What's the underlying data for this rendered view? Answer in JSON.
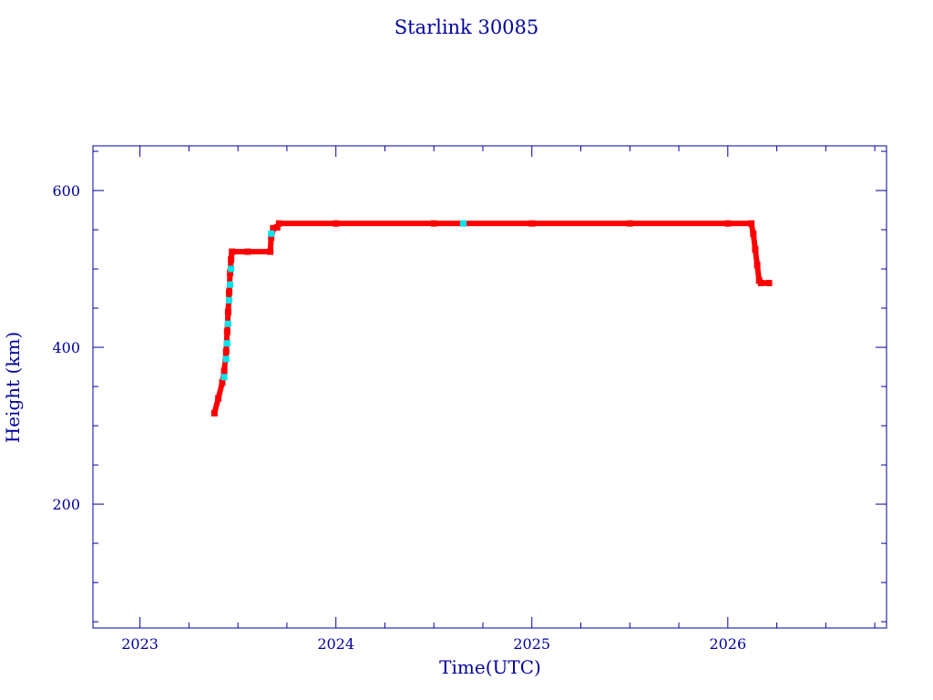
{
  "chart_data": {
    "type": "scatter",
    "title": "Starlink 30085",
    "xlabel": "Time(UTC)",
    "ylabel": "Height (km)",
    "xlim": [
      2022.76,
      2026.81
    ],
    "ylim": [
      42,
      657
    ],
    "xticks": [
      2023,
      2024,
      2025,
      2026
    ],
    "xtick_labels": [
      "2023",
      "2024",
      "2025",
      "2026"
    ],
    "yticks": [
      200,
      400,
      600
    ],
    "ytick_labels": [
      "200",
      "400",
      "600"
    ],
    "grid": false,
    "colors": {
      "axis": "#0000a0",
      "red": "#ff0000",
      "cyan": "#00e5ee"
    },
    "series": [
      {
        "name": "red",
        "color": "#ff0000",
        "points": [
          [
            2023.38,
            316
          ],
          [
            2023.4,
            335
          ],
          [
            2023.42,
            355
          ],
          [
            2023.43,
            370
          ],
          [
            2023.44,
            395
          ],
          [
            2023.445,
            420
          ],
          [
            2023.45,
            445
          ],
          [
            2023.455,
            470
          ],
          [
            2023.46,
            495
          ],
          [
            2023.465,
            512
          ],
          [
            2023.47,
            522
          ],
          [
            2023.55,
            522
          ],
          [
            2023.665,
            522
          ],
          [
            2023.67,
            540
          ],
          [
            2023.68,
            552
          ],
          [
            2023.7,
            553
          ],
          [
            2023.71,
            558
          ],
          [
            2024.0,
            558
          ],
          [
            2024.5,
            558
          ],
          [
            2025.0,
            558
          ],
          [
            2025.5,
            558
          ],
          [
            2026.0,
            558
          ],
          [
            2026.12,
            558
          ],
          [
            2026.13,
            545
          ],
          [
            2026.14,
            525
          ],
          [
            2026.15,
            505
          ],
          [
            2026.16,
            485
          ],
          [
            2026.17,
            482
          ],
          [
            2026.21,
            482
          ]
        ]
      },
      {
        "name": "cyan",
        "color": "#00e5ee",
        "points": [
          [
            2023.43,
            362
          ],
          [
            2023.44,
            385
          ],
          [
            2023.445,
            405
          ],
          [
            2023.45,
            430
          ],
          [
            2023.455,
            460
          ],
          [
            2023.46,
            480
          ],
          [
            2023.465,
            500
          ],
          [
            2023.67,
            545
          ],
          [
            2024.65,
            558
          ]
        ]
      }
    ]
  }
}
